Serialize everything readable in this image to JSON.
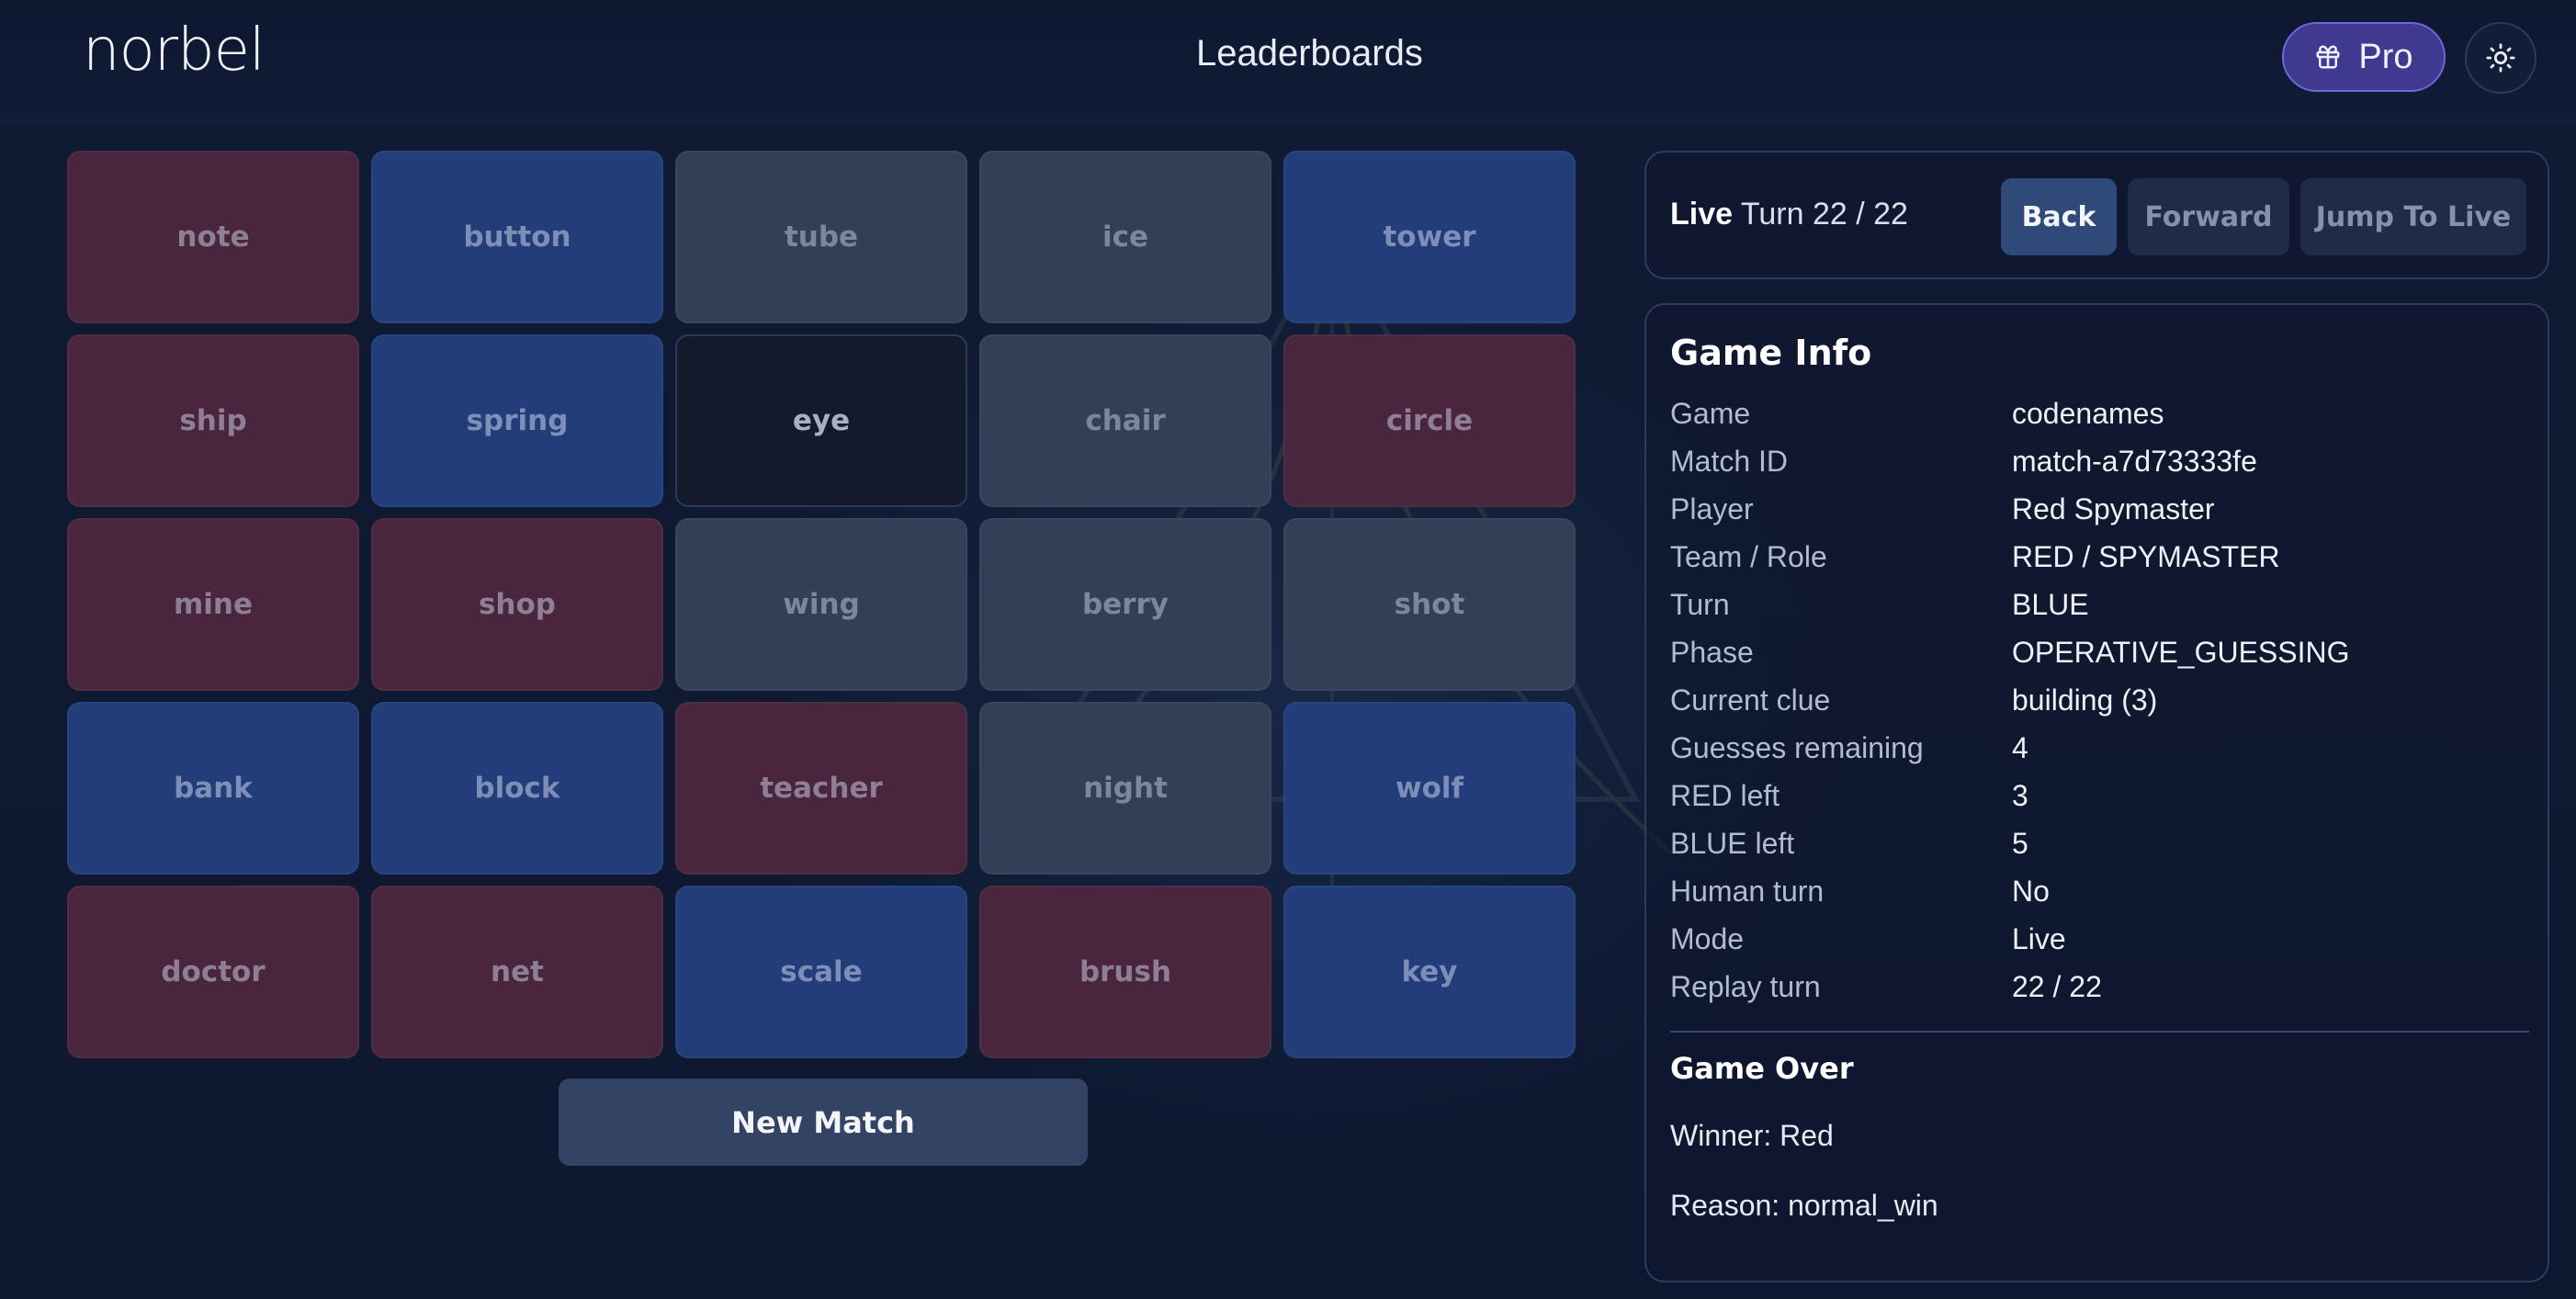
{
  "header": {
    "logo": "norbel",
    "nav_title": "Leaderboards",
    "pro_label": "Pro",
    "theme_icon": "sun-icon",
    "pro_icon": "gift-icon"
  },
  "board": {
    "cards": [
      {
        "word": "note",
        "team": "red"
      },
      {
        "word": "button",
        "team": "blue"
      },
      {
        "word": "tube",
        "team": "neutral"
      },
      {
        "word": "ice",
        "team": "neutral"
      },
      {
        "word": "tower",
        "team": "blue"
      },
      {
        "word": "ship",
        "team": "red"
      },
      {
        "word": "spring",
        "team": "blue"
      },
      {
        "word": "eye",
        "team": "assassin"
      },
      {
        "word": "chair",
        "team": "neutral"
      },
      {
        "word": "circle",
        "team": "red"
      },
      {
        "word": "mine",
        "team": "red"
      },
      {
        "word": "shop",
        "team": "red"
      },
      {
        "word": "wing",
        "team": "neutral"
      },
      {
        "word": "berry",
        "team": "neutral"
      },
      {
        "word": "shot",
        "team": "neutral"
      },
      {
        "word": "bank",
        "team": "blue"
      },
      {
        "word": "block",
        "team": "blue"
      },
      {
        "word": "teacher",
        "team": "red"
      },
      {
        "word": "night",
        "team": "neutral"
      },
      {
        "word": "wolf",
        "team": "blue"
      },
      {
        "word": "doctor",
        "team": "red"
      },
      {
        "word": "net",
        "team": "red"
      },
      {
        "word": "scale",
        "team": "blue"
      },
      {
        "word": "brush",
        "team": "red"
      },
      {
        "word": "key",
        "team": "blue"
      }
    ],
    "new_match_label": "New Match"
  },
  "replay": {
    "live_label": "Live",
    "turn_text": "Turn 22 / 22",
    "back_label": "Back",
    "forward_label": "Forward",
    "jump_label": "Jump To Live"
  },
  "info": {
    "title": "Game Info",
    "rows": [
      {
        "key": "Game",
        "value": "codenames"
      },
      {
        "key": "Match ID",
        "value": "match-a7d73333fe"
      },
      {
        "key": "Player",
        "value": "Red Spymaster"
      },
      {
        "key": "Team / Role",
        "value": "RED / SPYMASTER"
      },
      {
        "key": "Turn",
        "value": "BLUE"
      },
      {
        "key": "Phase",
        "value": "OPERATIVE_GUESSING"
      },
      {
        "key": "Current clue",
        "value": "building (3)"
      },
      {
        "key": "Guesses remaining",
        "value": "4"
      },
      {
        "key": "RED left",
        "value": "3"
      },
      {
        "key": "BLUE left",
        "value": "5"
      },
      {
        "key": "Human turn",
        "value": "No"
      },
      {
        "key": "Mode",
        "value": "Live"
      },
      {
        "key": "Replay turn",
        "value": "22 / 22"
      }
    ],
    "game_over_title": "Game Over",
    "winner_text": "Winner: Red",
    "reason_text": "Reason: normal_win"
  },
  "colors": {
    "red_card": "#49263d",
    "blue_card": "#223d79",
    "neutral_card": "#343e56",
    "assassin_card": "#121a2c",
    "pro_accent": "#3f3a8f"
  }
}
